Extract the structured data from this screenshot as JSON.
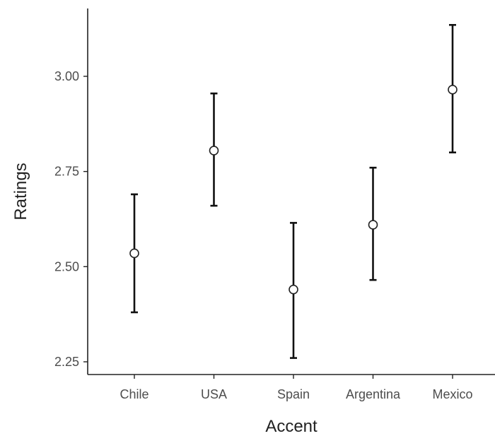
{
  "chart_data": {
    "type": "scatter",
    "style": "point-with-error-bars",
    "xlabel": "Accent",
    "ylabel": "Ratings",
    "categories": [
      "Chile",
      "USA",
      "Spain",
      "Argentina",
      "Mexico"
    ],
    "values": [
      2.535,
      2.805,
      2.44,
      2.61,
      2.965
    ],
    "lower": [
      2.38,
      2.66,
      2.26,
      2.465,
      2.8
    ],
    "upper": [
      2.69,
      2.955,
      2.615,
      2.76,
      3.135
    ],
    "ylim": [
      2.22,
      3.18
    ],
    "yticks": [
      2.25,
      2.5,
      2.75,
      3.0
    ],
    "ytick_labels": [
      "2.25",
      "2.50",
      "2.75",
      "3.00"
    ],
    "grid": false,
    "legend": "none",
    "colors": {
      "axis": "#222222",
      "errorbar": "#111111",
      "marker_fill": "#ffffff",
      "marker_stroke": "#222222",
      "tick_label": "#4d4d4d"
    }
  }
}
